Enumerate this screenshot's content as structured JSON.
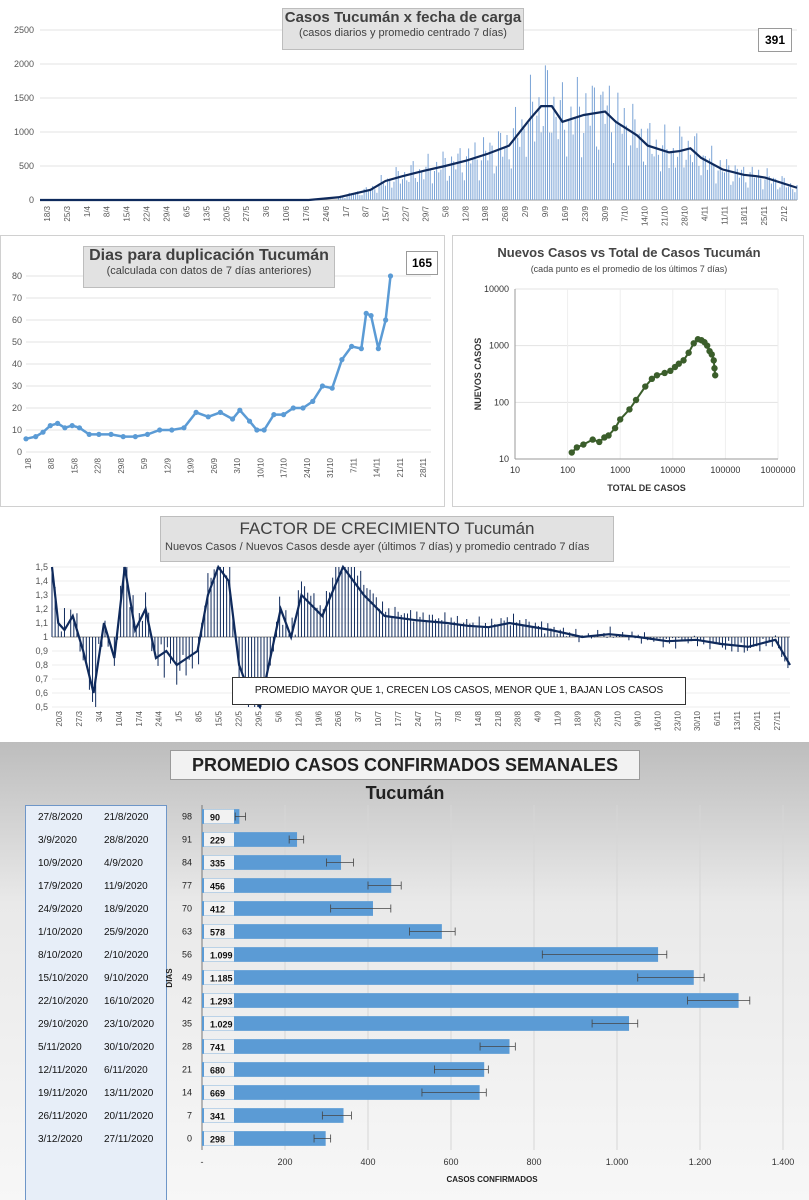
{
  "colors": {
    "navy": "#0f2a5c",
    "lightblue": "#7aa3d6",
    "midblue": "#5b9bd5",
    "green": "#3b5e2b",
    "bar": "#5b9bd5"
  },
  "chart_data": [
    {
      "type": "line",
      "title": "Casos  Tucumán  x fecha de carga",
      "subtitle": "(casos diarios y promedio  centrado 7 días)",
      "last_value": "391",
      "ylim": [
        0,
        2500
      ],
      "yticks": [
        "0",
        "500",
        "1000",
        "1500",
        "2000",
        "2500"
      ],
      "xticks": [
        "18/3",
        "25/3",
        "1/4",
        "8/4",
        "15/4",
        "22/4",
        "29/4",
        "6/5",
        "13/5",
        "20/5",
        "27/5",
        "3/6",
        "10/6",
        "17/6",
        "24/6",
        "1/7",
        "8/7",
        "15/7",
        "22/7",
        "29/7",
        "5/8",
        "12/8",
        "19/8",
        "26/8",
        "2/9",
        "9/9",
        "16/9",
        "23/9",
        "30/9",
        "7/10",
        "14/10",
        "21/10",
        "28/10",
        "4/11",
        "11/11",
        "18/11",
        "25/11",
        "2/12"
      ],
      "series": [
        {
          "x": [
            0,
            126,
            140,
            155,
            162,
            170,
            180,
            190,
            200,
            210,
            220,
            230,
            235,
            240,
            245,
            255,
            265,
            270,
            275,
            280,
            285,
            295,
            300,
            305,
            310,
            320,
            330,
            336,
            340,
            355
          ],
          "values": [
            0,
            0,
            40,
            150,
            280,
            350,
            430,
            500,
            580,
            680,
            800,
            1200,
            1380,
            1380,
            1150,
            1250,
            1300,
            1150,
            1050,
            950,
            800,
            700,
            720,
            760,
            620,
            450,
            370,
            350,
            330,
            180
          ]
        }
      ]
    },
    {
      "type": "line",
      "title": "Dias para duplicación Tucumán",
      "subtitle": "(calculada con datos de 7 días anteriores)",
      "last_value": "165",
      "ylim": [
        0,
        80
      ],
      "yticks": [
        "0",
        "10",
        "20",
        "30",
        "40",
        "50",
        "60",
        "70",
        "80"
      ],
      "xticks": [
        "1/8",
        "8/8",
        "15/8",
        "22/8",
        "29/8",
        "5/9",
        "12/9",
        "19/9",
        "26/9",
        "3/10",
        "10/10",
        "17/10",
        "24/10",
        "31/10",
        "7/11",
        "14/11",
        "21/11",
        "28/11"
      ],
      "series": [
        {
          "x": [
            0,
            4,
            7,
            10,
            13,
            16,
            19,
            22,
            26,
            30,
            35,
            40,
            45,
            50,
            55,
            60,
            65,
            70,
            75,
            80,
            85,
            88,
            92,
            95,
            98,
            102,
            106,
            110,
            114,
            118,
            122,
            126,
            130,
            134,
            138,
            140,
            142,
            145,
            148,
            150
          ],
          "values": [
            6,
            7,
            9,
            12,
            13,
            11,
            12,
            11,
            8,
            8,
            8,
            7,
            7,
            8,
            10,
            10,
            11,
            18,
            16,
            18,
            15,
            19,
            14,
            10,
            10,
            17,
            17,
            20,
            20,
            23,
            30,
            29,
            42,
            48,
            47,
            63,
            62,
            47,
            60,
            80
          ]
        }
      ]
    },
    {
      "type": "scatter",
      "title": "Nuevos Casos vs Total de Casos Tucumán",
      "subtitle": "(cada punto es el promedio de los últimos 7 días)",
      "xlabel": "TOTAL DE CASOS",
      "ylabel": "NUEVOS  CASOS",
      "log_x": true,
      "log_y": true,
      "xlim": [
        10,
        1000000
      ],
      "ylim": [
        10,
        10000
      ],
      "xticks": [
        "10",
        "100",
        "1000",
        "10000",
        "100000",
        "1000000"
      ],
      "yticks": [
        "10",
        "100",
        "1000",
        "10000"
      ],
      "points": {
        "x": [
          120,
          150,
          200,
          300,
          400,
          500,
          600,
          800,
          1000,
          1500,
          2000,
          3000,
          4000,
          5000,
          7000,
          9000,
          11000,
          13000,
          16000,
          20000,
          25000,
          30000,
          35000,
          40000,
          45000,
          50000,
          55000,
          60000,
          62000,
          64000
        ],
        "y": [
          13,
          16,
          18,
          22,
          20,
          24,
          26,
          35,
          50,
          75,
          110,
          190,
          260,
          300,
          330,
          360,
          420,
          480,
          550,
          750,
          1100,
          1300,
          1250,
          1150,
          1000,
          800,
          700,
          550,
          400,
          300
        ]
      }
    },
    {
      "type": "line",
      "title": "FACTOR DE CRECIMIENTO Tucumán",
      "subtitle": "Nuevos Casos  / Nuevos Casos desde ayer (últimos 7 días) y promedio  centrado 7 días",
      "note": "PROMEDIO MAYOR QUE 1, CRECEN LOS CASOS, MENOR QUE 1, BAJAN LOS CASOS",
      "ylim": [
        0.5,
        1.5
      ],
      "yticks": [
        "0,5",
        "0,6",
        "0,7",
        "0,8",
        "0,9",
        "1",
        "1,1",
        "1,2",
        "1,3",
        "1,4",
        "1,5"
      ],
      "xticks": [
        "20/3",
        "27/3",
        "3/4",
        "10/4",
        "17/4",
        "24/4",
        "1/5",
        "8/5",
        "15/5",
        "22/5",
        "29/5",
        "5/6",
        "12/6",
        "19/6",
        "26/6",
        "3/7",
        "10/7",
        "17/7",
        "24/7",
        "31/7",
        "7/8",
        "14/8",
        "21/8",
        "28/8",
        "4/9",
        "11/9",
        "18/9",
        "25/9",
        "2/10",
        "9/10",
        "16/10",
        "23/10",
        "30/10",
        "6/11",
        "13/11",
        "20/11",
        "27/11"
      ],
      "series": [
        {
          "x": [
            0,
            3,
            6,
            10,
            15,
            20,
            25,
            30,
            35,
            40,
            45,
            50,
            55,
            60,
            70,
            75,
            80,
            85,
            90,
            95,
            100,
            105,
            110,
            115,
            120,
            130,
            140,
            150,
            160,
            175,
            190,
            200,
            210,
            220,
            240,
            255,
            268,
            282,
            296,
            310,
            322,
            335,
            348,
            355
          ],
          "values": [
            1.5,
            1.1,
            1.05,
            1.15,
            0.9,
            0.6,
            1.1,
            0.85,
            1.5,
            1.05,
            1.2,
            0.85,
            0.9,
            0.8,
            0.9,
            1.3,
            1.5,
            1.4,
            0.8,
            0.6,
            0.5,
            0.85,
            1.2,
            1.0,
            1.3,
            1.15,
            1.5,
            1.3,
            1.15,
            1.12,
            1.1,
            1.08,
            1.07,
            1.1,
            1.05,
            1.0,
            1.02,
            1.0,
            0.97,
            0.98,
            0.95,
            0.93,
            0.98,
            0.8
          ]
        }
      ]
    },
    {
      "type": "bar",
      "orientation": "horizontal",
      "title": "PROMEDIO CASOS CONFIRMADOS SEMANALES Tucumán",
      "xlabel": "CASOS CONFIRMADOS",
      "ylabel": "DIAS",
      "xlim": [
        0,
        1400
      ],
      "xticks": [
        "-",
        "200",
        "400",
        "600",
        "800",
        "1.000",
        "1.200",
        "1.400"
      ],
      "categories": [
        "98",
        "91",
        "84",
        "77",
        "70",
        "63",
        "56",
        "49",
        "42",
        "35",
        "28",
        "21",
        "14",
        "7",
        "0"
      ],
      "values": [
        90,
        229,
        335,
        456,
        412,
        578,
        1099,
        1185,
        1293,
        1029,
        741,
        680,
        669,
        341,
        298
      ],
      "value_labels": [
        "90",
        "229",
        "335",
        "456",
        "412",
        "578",
        "1.099",
        "1.185",
        "1.293",
        "1.029",
        "741",
        "680",
        "669",
        "341",
        "298"
      ],
      "error_low": [
        80,
        210,
        300,
        400,
        310,
        500,
        820,
        1050,
        1170,
        940,
        670,
        560,
        530,
        290,
        270
      ],
      "error_high": [
        105,
        245,
        365,
        480,
        455,
        610,
        1120,
        1210,
        1320,
        1050,
        755,
        690,
        685,
        360,
        310
      ],
      "date_ranges": [
        [
          "27/8/2020",
          "21/8/2020"
        ],
        [
          "3/9/2020",
          "28/8/2020"
        ],
        [
          "10/9/2020",
          "4/9/2020"
        ],
        [
          "17/9/2020",
          "11/9/2020"
        ],
        [
          "24/9/2020",
          "18/9/2020"
        ],
        [
          "1/10/2020",
          "25/9/2020"
        ],
        [
          "8/10/2020",
          "2/10/2020"
        ],
        [
          "15/10/2020",
          "9/10/2020"
        ],
        [
          "22/10/2020",
          "16/10/2020"
        ],
        [
          "29/10/2020",
          "23/10/2020"
        ],
        [
          "5/11/2020",
          "30/10/2020"
        ],
        [
          "12/11/2020",
          "6/11/2020"
        ],
        [
          "19/11/2020",
          "13/11/2020"
        ],
        [
          "26/11/2020",
          "20/11/2020"
        ],
        [
          "3/12/2020",
          "27/11/2020"
        ]
      ]
    }
  ]
}
